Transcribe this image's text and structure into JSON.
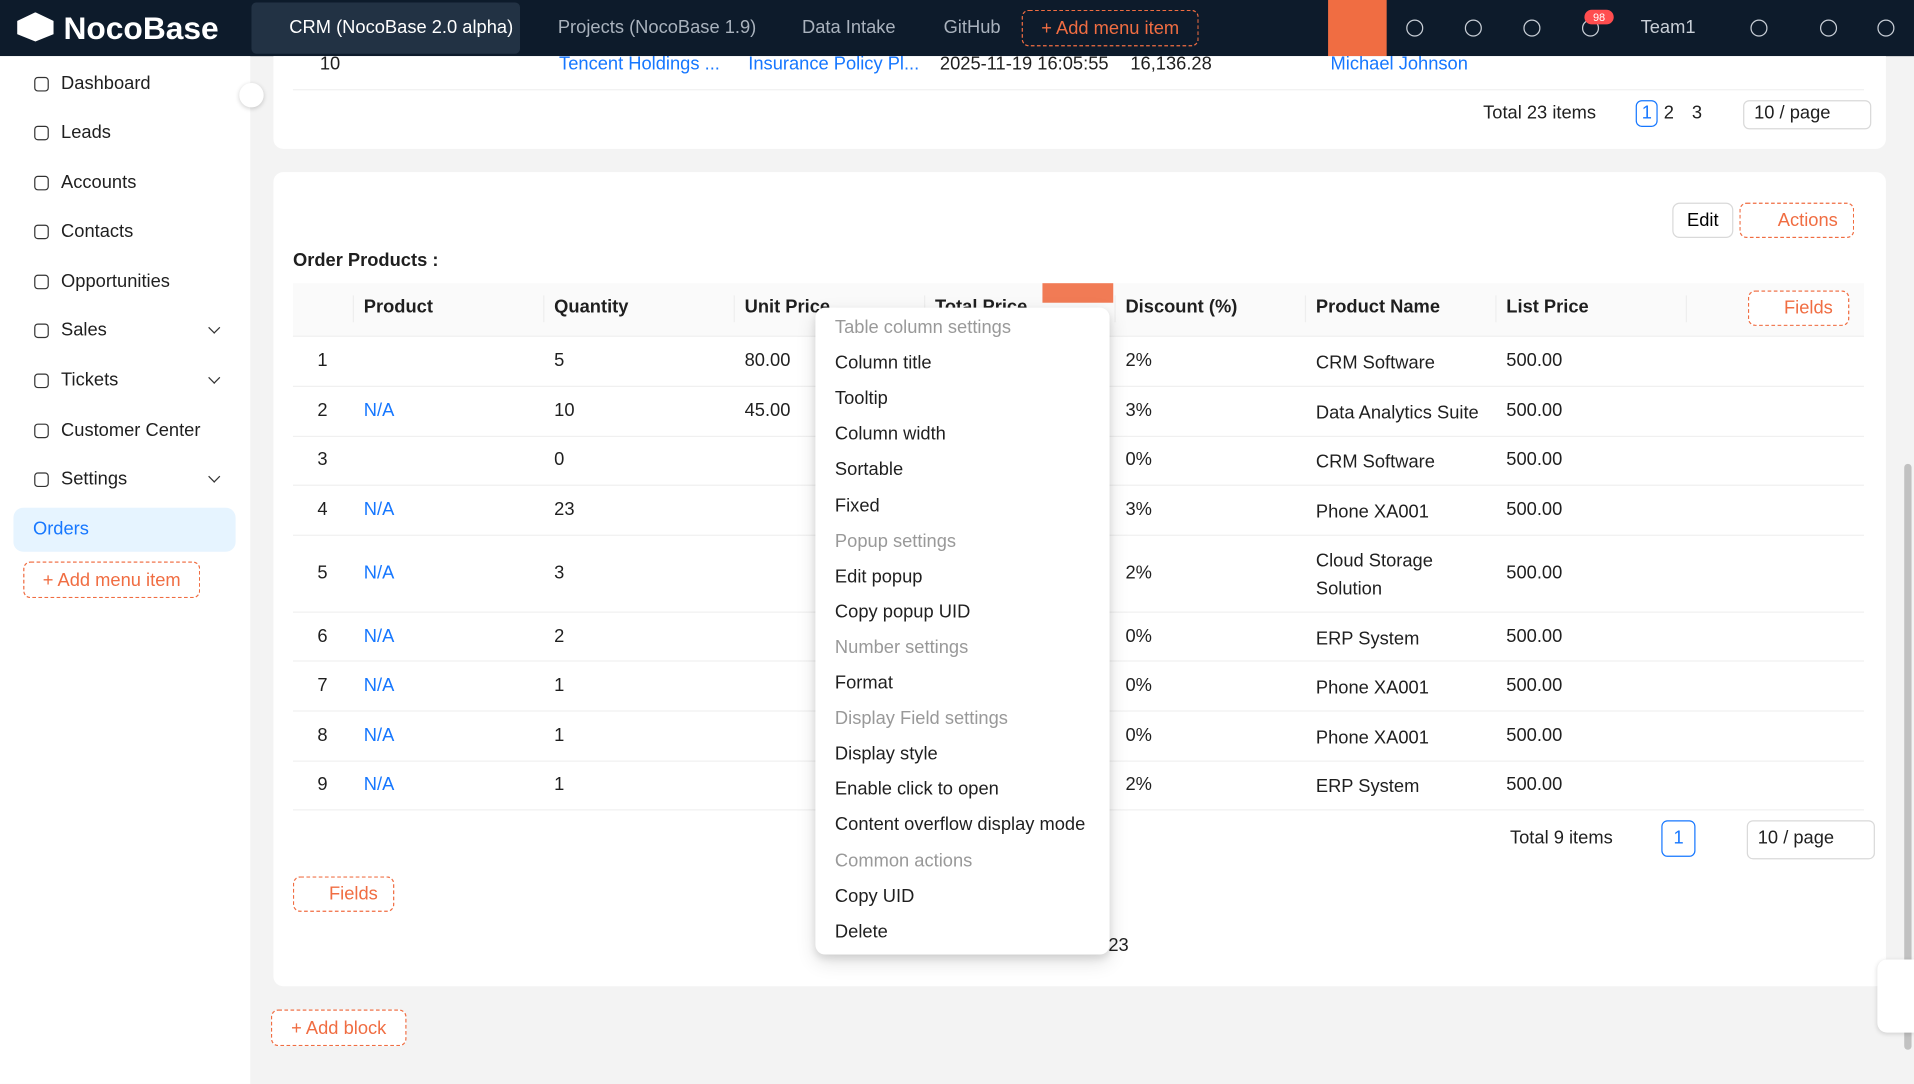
{
  "header": {
    "logo": "NocoBase",
    "tabs": [
      "CRM (NocoBase 2.0 alpha)",
      "Projects (NocoBase 1.9)",
      "Data Intake",
      "GitHub"
    ],
    "add_menu_item": "+ Add menu item",
    "notification_count": "98",
    "user": "Team1"
  },
  "sidebar": {
    "items": [
      {
        "label": "Dashboard"
      },
      {
        "label": "Leads"
      },
      {
        "label": "Accounts"
      },
      {
        "label": "Contacts"
      },
      {
        "label": "Opportunities"
      },
      {
        "label": "Sales",
        "expandable": true
      },
      {
        "label": "Tickets",
        "expandable": true
      },
      {
        "label": "Customer Center"
      },
      {
        "label": "Settings",
        "expandable": true
      },
      {
        "label": "Orders",
        "active": true
      }
    ],
    "add_menu_item": "+ Add menu item"
  },
  "top_table": {
    "row": [
      "10",
      "Tencent Holdings ...",
      "Insurance Policy Pl...",
      "2025-11-19 16:05:55",
      "16,136.28",
      "Michael Johnson"
    ],
    "pagination": {
      "total": "Total 23 items",
      "pages": [
        "1",
        "2",
        "3"
      ],
      "page_size": "10 / page"
    }
  },
  "order_products": {
    "title": "Order Products :",
    "actions": [
      "Edit",
      "Actions"
    ],
    "columns": [
      "Product",
      "Quantity",
      "Unit Price",
      "Total Price",
      "Discount (%)",
      "Product Name",
      "List Price"
    ],
    "fields_button": "Fields",
    "rows": [
      {
        "no": "1",
        "cells": [
          null,
          "5",
          "80.00",
          null,
          "2%",
          "CRM Software",
          "500.00"
        ]
      },
      {
        "no": "2",
        "cells": [
          "N/A",
          "10",
          "45.00",
          null,
          "3%",
          "Data Analytics Suite",
          "500.00"
        ]
      },
      {
        "no": "3",
        "cells": [
          null,
          "0",
          null,
          null,
          "0%",
          "CRM Software",
          "500.00"
        ]
      },
      {
        "no": "4",
        "cells": [
          "N/A",
          "23",
          null,
          null,
          "3%",
          "Phone XA001",
          "500.00"
        ]
      },
      {
        "no": "5",
        "cells": [
          "N/A",
          "3",
          null,
          null,
          "2%",
          "Cloud Storage Solution",
          "500.00"
        ]
      },
      {
        "no": "6",
        "cells": [
          "N/A",
          "2",
          null,
          null,
          "0%",
          "ERP System",
          "500.00"
        ]
      },
      {
        "no": "7",
        "cells": [
          "N/A",
          "1",
          null,
          null,
          "0%",
          "Phone XA001",
          "500.00"
        ]
      },
      {
        "no": "8",
        "cells": [
          "N/A",
          "1",
          null,
          null,
          "0%",
          "Phone XA001",
          "500.00"
        ]
      },
      {
        "no": "9",
        "cells": [
          "N/A",
          "1",
          null,
          null,
          "2%",
          "ERP System",
          "500.00"
        ]
      }
    ],
    "pagination": {
      "total": "Total 9 items",
      "pages": [
        "1"
      ],
      "page_size": "10 / page"
    },
    "bottom_fields_button": "Fields",
    "hidden_pagination_page": "23"
  },
  "context_menu": {
    "groups": [
      {
        "title": "Table column settings",
        "items": [
          "Column title",
          "Tooltip",
          "Column width",
          "Sortable",
          "Fixed"
        ]
      },
      {
        "title": "Popup settings",
        "items": [
          "Edit popup",
          "Copy popup UID"
        ]
      },
      {
        "title": "Number settings",
        "items": [
          "Format"
        ]
      },
      {
        "title": "Display Field settings",
        "items": [
          "Display style",
          "Enable click to open",
          "Content overflow display mode"
        ]
      },
      {
        "title": "Common actions",
        "items": [
          "Copy UID",
          "Delete"
        ]
      }
    ]
  },
  "add_block": "+ Add block"
}
